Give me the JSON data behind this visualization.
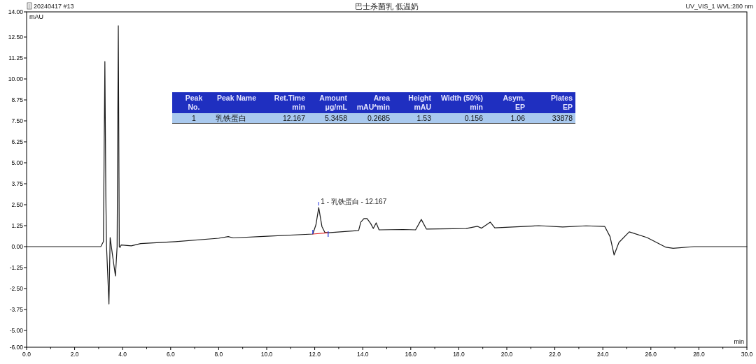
{
  "chart_data": {
    "type": "line",
    "title": "巴士杀菌乳 低温奶",
    "xlabel": "min",
    "ylabel": "mAU",
    "annotations": [
      "20240417 #13",
      "UV_VIS_1 WVL:280 nm",
      {
        "text": "1 - 乳铁蛋白 - 12.167",
        "x": 12.167,
        "y": 2.33
      },
      "Peak\nNo.",
      "Peak Name",
      "Ret.Time\nmin",
      "Amount\nμg/mL",
      "Area\nmAU*min",
      "Height\nmAU",
      "Width (50%)\nmin",
      "Asym.\nEP",
      "Plates\nEP",
      "1",
      "乳铁蛋白",
      "12.167",
      "5.3458",
      "0.2685",
      "1.53",
      "0.156",
      "1.06",
      "33878"
    ],
    "series": [
      {
        "color": "#1a1a1a",
        "x": [
          0,
          1,
          2,
          3.09,
          3.2,
          3.26,
          3.3,
          3.33,
          3.43,
          3.48,
          3.57,
          3.7,
          3.77,
          3.82,
          3.86,
          3.89,
          3.94,
          4.36,
          4.75,
          6.21,
          8,
          8.4,
          8.6,
          10.02,
          11.92,
          12.05,
          12.167,
          12.3,
          12.42,
          12.56,
          13.83,
          13.92,
          14.05,
          14.18,
          14.33,
          14.44,
          14.56,
          14.68,
          15.68,
          16.2,
          16.44,
          16.65,
          18.3,
          18.78,
          18.95,
          19.31,
          19.5,
          21.33,
          22.33,
          23.3,
          24.08,
          24.3,
          24.47,
          24.67,
          25.1,
          25.84,
          26.63,
          26.93,
          27.8,
          30
        ],
        "values": [
          0,
          0,
          0,
          0,
          0.3,
          11.04,
          3,
          0,
          -3.42,
          0.54,
          -0.42,
          -1.75,
          0,
          13.17,
          0,
          -0.05,
          0.1,
          0.05,
          0.18,
          0.3,
          0.5,
          0.6,
          0.52,
          0.62,
          0.75,
          1.3,
          2.33,
          1.2,
          0.85,
          0.83,
          0.96,
          1.46,
          1.67,
          1.67,
          1.38,
          1.08,
          1.42,
          1.0,
          1.02,
          1.0,
          1.62,
          1.05,
          1.08,
          1.21,
          1.1,
          1.46,
          1.12,
          1.25,
          1.17,
          1.24,
          1.2,
          0.6,
          -0.5,
          0.25,
          0.88,
          0.54,
          -0.04,
          -0.1,
          0,
          0
        ]
      },
      {
        "color": "#e02020",
        "x": [
          11.92,
          12.56
        ],
        "values": [
          0.75,
          0.83
        ]
      }
    ],
    "xlim": [
      0,
      30
    ],
    "ylim": [
      -6,
      14
    ],
    "xticks": [
      {
        "value": 0,
        "label": "0.0"
      },
      {
        "value": 1,
        "label": null
      },
      {
        "value": 2,
        "label": "2.0"
      },
      {
        "value": 3,
        "label": null
      },
      {
        "value": 4,
        "label": "4.0"
      },
      {
        "value": 5,
        "label": null
      },
      {
        "value": 6,
        "label": "6.0"
      },
      {
        "value": 7,
        "label": null
      },
      {
        "value": 8,
        "label": "8.0"
      },
      {
        "value": 9,
        "label": null
      },
      {
        "value": 10,
        "label": "10.0"
      },
      {
        "value": 11,
        "label": null
      },
      {
        "value": 12,
        "label": "12.0"
      },
      {
        "value": 13,
        "label": null
      },
      {
        "value": 14,
        "label": "14.0"
      },
      {
        "value": 15,
        "label": null
      },
      {
        "value": 16,
        "label": "16.0"
      },
      {
        "value": 17,
        "label": null
      },
      {
        "value": 18,
        "label": "18.0"
      },
      {
        "value": 19,
        "label": null
      },
      {
        "value": 20,
        "label": "20.0"
      },
      {
        "value": 21,
        "label": null
      },
      {
        "value": 22,
        "label": "22.0"
      },
      {
        "value": 23,
        "label": null
      },
      {
        "value": 24,
        "label": "24.0"
      },
      {
        "value": 25,
        "label": null
      },
      {
        "value": 26,
        "label": "26.0"
      },
      {
        "value": 27,
        "label": null
      },
      {
        "value": 28,
        "label": "28.0"
      },
      {
        "value": 29,
        "label": null
      },
      {
        "value": 30,
        "label": "30.0"
      }
    ],
    "yticks": [
      {
        "value": -6,
        "label": "-6.00"
      },
      {
        "value": -5,
        "label": "-5.00"
      },
      {
        "value": -3.75,
        "label": "-3.75"
      },
      {
        "value": -2.5,
        "label": "-2.50"
      },
      {
        "value": -1.25,
        "label": "-1.25"
      },
      {
        "value": 0,
        "label": "0.00"
      },
      {
        "value": 1.25,
        "label": "1.25"
      },
      {
        "value": 2.5,
        "label": "2.50"
      },
      {
        "value": 3.75,
        "label": "3.75"
      },
      {
        "value": 5,
        "label": "5.00"
      },
      {
        "value": 6.25,
        "label": "6.25"
      },
      {
        "value": 7.5,
        "label": "7.50"
      },
      {
        "value": 8.75,
        "label": "8.75"
      },
      {
        "value": 10,
        "label": "10.00"
      },
      {
        "value": 11.25,
        "label": "11.25"
      },
      {
        "value": 12.5,
        "label": "12.50"
      },
      {
        "value": 14,
        "label": "14.00"
      }
    ],
    "grid": false,
    "marker": "none",
    "line_style": "solid"
  }
}
